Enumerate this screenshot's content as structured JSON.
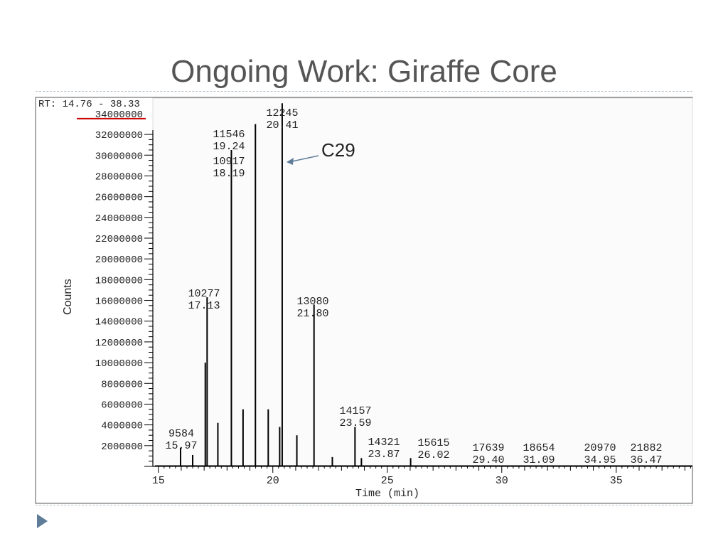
{
  "slide": {
    "title": "Ongoing Work: Giraffe Core"
  },
  "chart_data": {
    "type": "line",
    "rt_range_label": "RT: 14.76 - 38.33",
    "xlabel": "Time (min)",
    "ylabel": "Counts",
    "xlim": [
      14.76,
      38.33
    ],
    "ylim": [
      0,
      35500000
    ],
    "x_ticks": [
      15,
      20,
      25,
      30,
      35
    ],
    "y_ticks": [
      2000000,
      4000000,
      6000000,
      8000000,
      10000000,
      12000000,
      14000000,
      16000000,
      18000000,
      20000000,
      22000000,
      24000000,
      26000000,
      28000000,
      30000000,
      32000000,
      34000000
    ],
    "highlighted_y_tick": 34000000,
    "accent_color": "#cc0000",
    "trace_color": "#000000",
    "peaks": [
      {
        "x": 15.97,
        "y": 1800000
      },
      {
        "x": 16.5,
        "y": 1100000
      },
      {
        "x": 17.05,
        "y": 10000000
      },
      {
        "x": 17.13,
        "y": 16300000
      },
      {
        "x": 17.6,
        "y": 4200000
      },
      {
        "x": 18.19,
        "y": 30500000
      },
      {
        "x": 18.7,
        "y": 5500000
      },
      {
        "x": 19.24,
        "y": 33000000
      },
      {
        "x": 19.8,
        "y": 5500000
      },
      {
        "x": 20.3,
        "y": 3800000
      },
      {
        "x": 20.41,
        "y": 35000000
      },
      {
        "x": 21.05,
        "y": 3000000
      },
      {
        "x": 21.8,
        "y": 15600000
      },
      {
        "x": 22.6,
        "y": 900000
      },
      {
        "x": 23.59,
        "y": 3800000
      },
      {
        "x": 23.87,
        "y": 800000
      },
      {
        "x": 26.02,
        "y": 800000
      }
    ],
    "peak_labels": [
      {
        "scan": "9584",
        "rt": "15.97",
        "x": 15.97
      },
      {
        "scan": "10277",
        "rt": "17.13",
        "x": 17.13
      },
      {
        "scan": "10917",
        "rt": "18.19",
        "x": 18.19
      },
      {
        "scan": "11546",
        "rt": "19.24",
        "x": 19.24
      },
      {
        "scan": "12245",
        "rt": "20.41",
        "x": 20.41
      },
      {
        "scan": "13080",
        "rt": "21.80",
        "x": 21.8
      },
      {
        "scan": "14157",
        "rt": "23.59",
        "x": 23.59
      },
      {
        "scan": "14321",
        "rt": "23.87",
        "x": 23.87
      },
      {
        "scan": "15615",
        "rt": "26.02",
        "x": 26.02
      },
      {
        "scan": "17639",
        "rt": "29.40",
        "x": 29.4
      },
      {
        "scan": "18654",
        "rt": "31.09",
        "x": 31.09
      },
      {
        "scan": "20970",
        "rt": "34.95",
        "x": 34.95
      },
      {
        "scan": "21882",
        "rt": "36.47",
        "x": 36.47
      }
    ],
    "annotation": {
      "text": "C29",
      "x": 20.41
    }
  }
}
